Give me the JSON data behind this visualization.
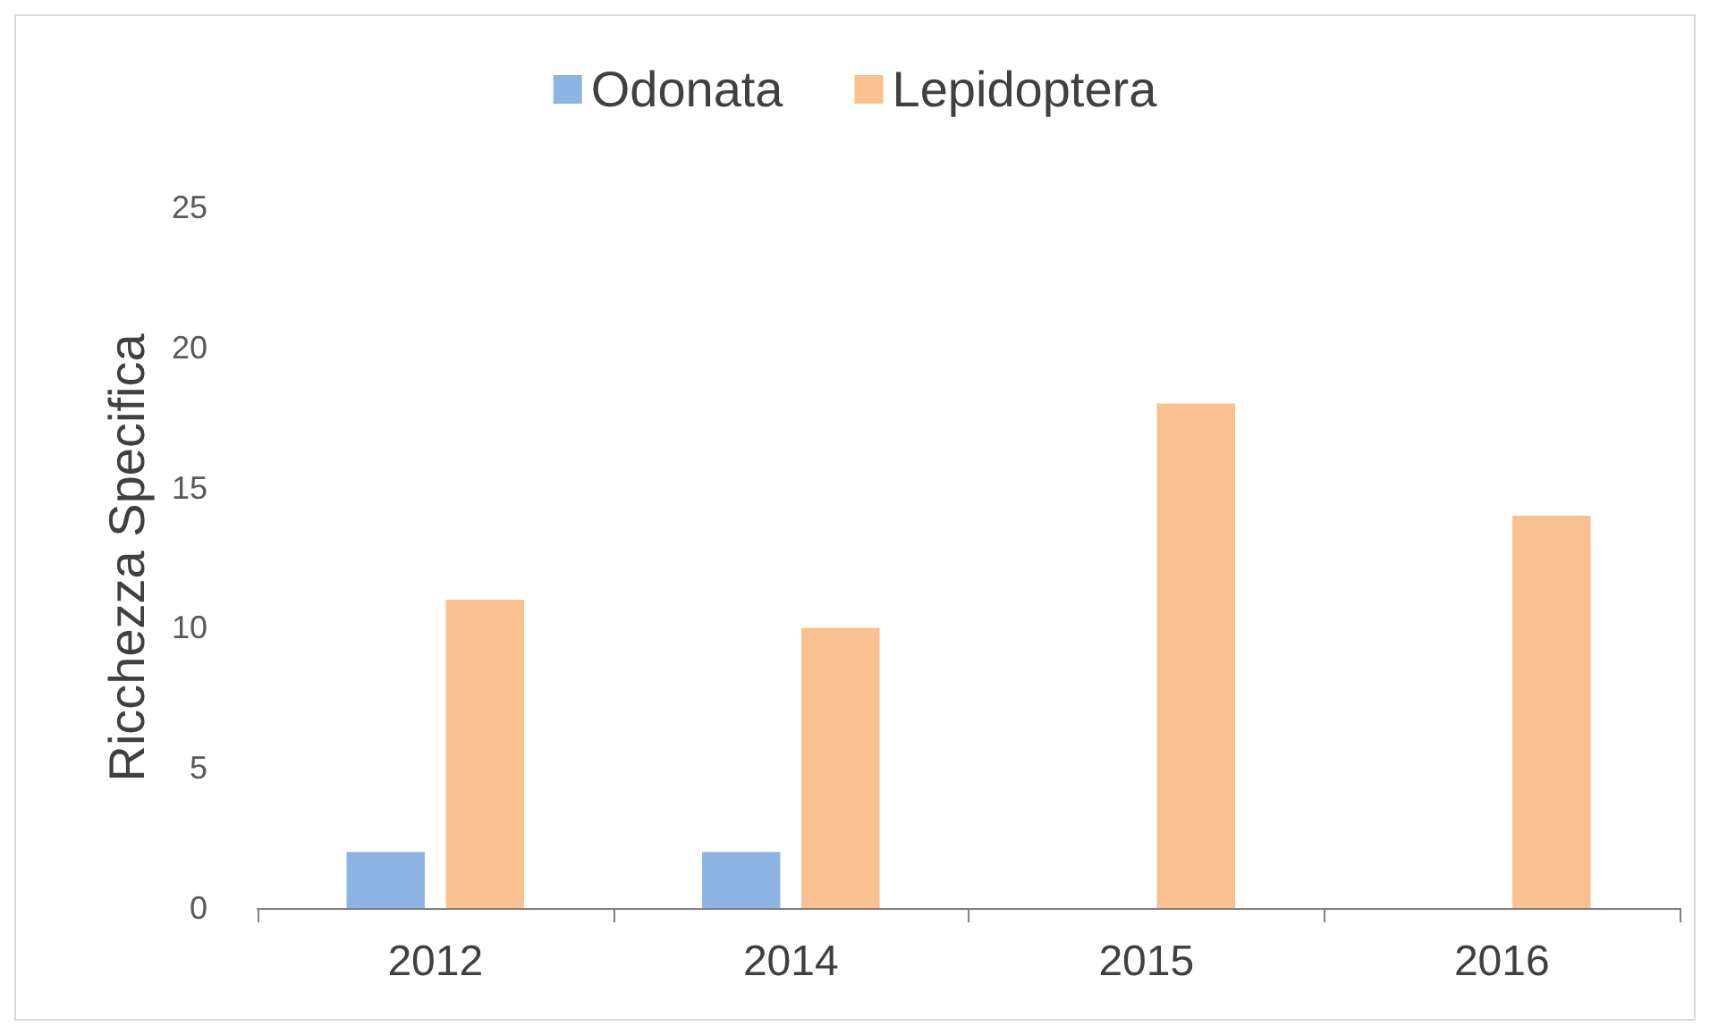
{
  "chart_data": {
    "type": "bar",
    "ylabel": "Ricchezza Specifica",
    "categories": [
      "2012",
      "2014",
      "2015",
      "2016"
    ],
    "series": [
      {
        "name": "Odonata",
        "color": "#8db4e2",
        "values": [
          2,
          2,
          0,
          0
        ]
      },
      {
        "name": "Lepidoptera",
        "color": "#fac090",
        "values": [
          11,
          10,
          18,
          14
        ]
      }
    ],
    "ylim": [
      0,
      25
    ],
    "yticks": [
      0,
      5,
      10,
      15,
      20,
      25
    ],
    "grid": false,
    "legend": "top"
  }
}
